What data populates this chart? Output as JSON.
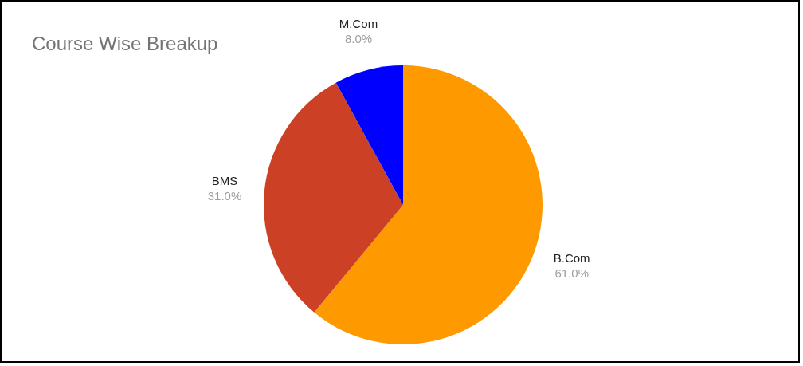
{
  "chart_data": {
    "type": "pie",
    "title": "Course Wise Breakup",
    "categories": [
      "B.Com",
      "BMS",
      "M.Com"
    ],
    "values": [
      61,
      31,
      8
    ],
    "colors": [
      "#ff9900",
      "#cc4125",
      "#0000ff"
    ],
    "value_labels": [
      "61.0%",
      "31.0%",
      "8.0%"
    ]
  }
}
